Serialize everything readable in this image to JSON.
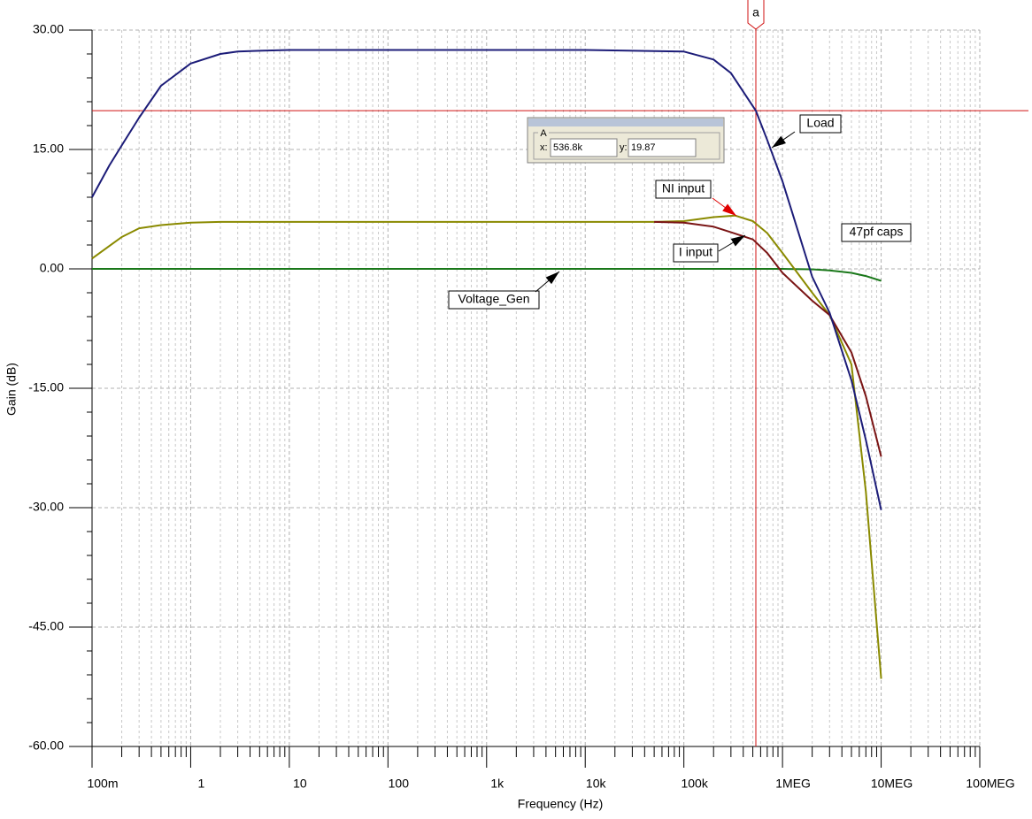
{
  "chart_data": {
    "type": "line",
    "xlabel": "Frequency (Hz)",
    "ylabel": "Gain (dB)",
    "xscale": "log",
    "grid": true,
    "xlim": [
      0.1,
      100000000
    ],
    "ylim": [
      -60,
      30
    ],
    "xticks": [
      {
        "value": 0.1,
        "label": "100m"
      },
      1,
      10,
      100,
      {
        "value": 1000,
        "label": "1k"
      },
      {
        "value": 10000,
        "label": "10k"
      },
      {
        "value": 100000,
        "label": "100k"
      },
      {
        "value": 1000000,
        "label": "1MEG"
      },
      {
        "value": 10000000,
        "label": "10MEG"
      },
      {
        "value": 100000000,
        "label": "100MEG"
      }
    ],
    "yticks": [
      {
        "value": 30,
        "label": "30.00"
      },
      {
        "value": 15,
        "label": "15.00"
      },
      {
        "value": 0,
        "label": "0.00"
      },
      {
        "value": -15,
        "label": "-15.00"
      },
      {
        "value": -30,
        "label": "-30.00"
      },
      {
        "value": -45,
        "label": "-45.00"
      },
      {
        "value": -60,
        "label": "-60.00"
      }
    ],
    "series": [
      {
        "name": "Load",
        "color": "#1c1c78",
        "x": [
          0.1,
          0.15,
          0.2,
          0.3,
          0.5,
          1,
          2,
          3,
          5,
          10,
          100,
          1000,
          10000,
          100000,
          200000,
          300000,
          536800,
          700000,
          1000000,
          2000000,
          3000000,
          5000000,
          7000000,
          10000000
        ],
        "values": [
          9,
          13,
          15.5,
          19,
          23,
          25.8,
          27,
          27.3,
          27.4,
          27.5,
          27.5,
          27.5,
          27.5,
          27.3,
          26.3,
          24.6,
          19.87,
          16.2,
          11,
          -1,
          -5.5,
          -14,
          -21.5,
          -30.3
        ]
      },
      {
        "name": "NI input",
        "color": "#8a8a00",
        "x": [
          0.1,
          0.2,
          0.3,
          0.5,
          1,
          2,
          10,
          100,
          1000,
          10000,
          50000,
          100000,
          200000,
          330000,
          500000,
          700000,
          1000000,
          2000000,
          3000000,
          5000000,
          7000000,
          10000000
        ],
        "values": [
          1.3,
          4,
          5.1,
          5.5,
          5.8,
          5.9,
          5.9,
          5.9,
          5.9,
          5.9,
          5.9,
          6,
          6.5,
          6.7,
          6,
          4.5,
          2,
          -3,
          -5.8,
          -12,
          -28,
          -51.5
        ]
      },
      {
        "name": "I input",
        "color": "#7a1414",
        "x": [
          50000,
          100000,
          200000,
          300000,
          500000,
          700000,
          1000000,
          2000000,
          3000000,
          5000000,
          7000000,
          10000000
        ],
        "values": [
          5.9,
          5.8,
          5.3,
          4.6,
          3.7,
          2,
          -0.5,
          -4,
          -5.8,
          -10.5,
          -16,
          -23.6
        ]
      },
      {
        "name": "Voltage_Gen",
        "color": "#1a781a",
        "x": [
          0.1,
          1,
          10,
          100,
          1000,
          10000,
          100000,
          1000000,
          2000000,
          3000000,
          5000000,
          7000000,
          10000000
        ],
        "values": [
          0,
          0,
          0,
          0,
          0,
          0,
          0,
          0,
          -0.05,
          -0.2,
          -0.5,
          -0.9,
          -1.5
        ]
      }
    ],
    "annotations": [
      {
        "text": "47pf caps"
      }
    ],
    "cursor": {
      "marker": "a",
      "box_title": "A",
      "x_caption": "x:",
      "y_caption": "y:",
      "x": 536800,
      "x_label": "536.8k",
      "y": 19.87,
      "color": "#d01010"
    }
  }
}
